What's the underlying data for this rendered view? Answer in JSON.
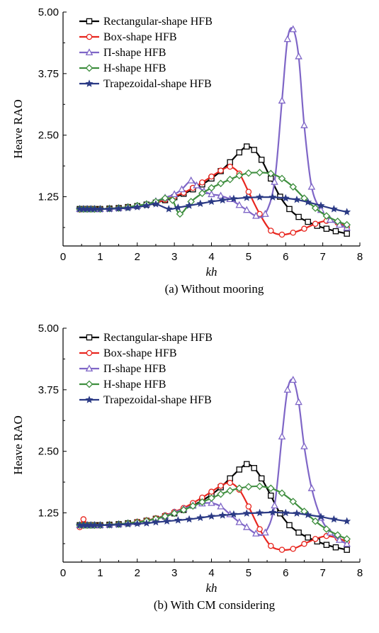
{
  "chart_data": [
    {
      "type": "line",
      "caption": "(a) Without mooring",
      "xlabel": "kh",
      "ylabel": "Heave RAO",
      "xlim": [
        0,
        8
      ],
      "ylim": [
        0.25,
        5.0
      ],
      "xticks": [
        "0",
        "1",
        "2",
        "3",
        "4",
        "5",
        "6",
        "7",
        "8"
      ],
      "yticks": [
        "1.25",
        "2.50",
        "3.75",
        "5.00"
      ],
      "legend_position": "top-left",
      "series": [
        {
          "name": "Rectangular-shape HFB",
          "color": "#000000",
          "marker": "square",
          "x": [
            0.45,
            0.55,
            0.65,
            0.75,
            0.85,
            1.0,
            1.25,
            1.5,
            1.75,
            2.0,
            2.25,
            2.5,
            2.75,
            3.0,
            3.25,
            3.5,
            3.75,
            4.0,
            4.25,
            4.5,
            4.75,
            4.95,
            5.15,
            5.35,
            5.6,
            5.85,
            6.1,
            6.35,
            6.6,
            6.85,
            7.1,
            7.35,
            7.65
          ],
          "y": [
            1.0,
            1.0,
            1.0,
            1.0,
            1.0,
            1.0,
            1.01,
            1.02,
            1.04,
            1.06,
            1.09,
            1.13,
            1.18,
            1.24,
            1.31,
            1.4,
            1.5,
            1.62,
            1.77,
            1.95,
            2.15,
            2.27,
            2.2,
            2.0,
            1.62,
            1.25,
            1.0,
            0.84,
            0.74,
            0.66,
            0.6,
            0.55,
            0.5
          ]
        },
        {
          "name": "Box-shape HFB",
          "color": "#e8261f",
          "marker": "circle",
          "x": [
            0.45,
            0.55,
            0.65,
            0.75,
            0.85,
            1.0,
            1.25,
            1.5,
            1.75,
            2.0,
            2.25,
            2.5,
            2.75,
            3.0,
            3.25,
            3.5,
            3.75,
            4.0,
            4.25,
            4.5,
            4.75,
            5.0,
            5.3,
            5.6,
            5.9,
            6.2,
            6.5,
            6.8,
            7.1,
            7.4,
            7.65
          ],
          "y": [
            0.99,
            1.0,
            1.0,
            1.0,
            1.0,
            1.0,
            1.01,
            1.02,
            1.04,
            1.06,
            1.09,
            1.13,
            1.19,
            1.26,
            1.33,
            1.43,
            1.54,
            1.66,
            1.78,
            1.86,
            1.72,
            1.35,
            0.9,
            0.56,
            0.48,
            0.52,
            0.6,
            0.7,
            0.76,
            0.72,
            0.63
          ]
        },
        {
          "name": "Π-shape HFB",
          "color": "#7f66c7",
          "marker": "triangle",
          "x": [
            0.45,
            0.55,
            0.65,
            0.75,
            0.85,
            1.0,
            1.25,
            1.5,
            1.75,
            2.0,
            2.25,
            2.5,
            2.75,
            3.0,
            3.2,
            3.45,
            3.6,
            3.8,
            4.0,
            4.25,
            4.5,
            4.75,
            4.95,
            5.2,
            5.45,
            5.7,
            5.9,
            6.05,
            6.2,
            6.35,
            6.5,
            6.7,
            6.95,
            7.2,
            7.45,
            7.65
          ],
          "y": [
            1.0,
            1.0,
            1.0,
            1.0,
            1.0,
            1.0,
            1.01,
            1.02,
            1.04,
            1.06,
            1.1,
            1.16,
            1.23,
            1.3,
            1.4,
            1.58,
            1.48,
            1.36,
            1.3,
            1.27,
            1.2,
            1.08,
            0.98,
            0.86,
            0.9,
            1.55,
            3.2,
            4.45,
            4.65,
            4.1,
            2.7,
            1.45,
            0.98,
            0.78,
            0.68,
            0.62
          ]
        },
        {
          "name": "H-shape HFB",
          "color": "#3e8e3e",
          "marker": "diamond",
          "x": [
            0.45,
            0.55,
            0.65,
            0.75,
            0.85,
            1.0,
            1.25,
            1.5,
            1.75,
            2.0,
            2.25,
            2.5,
            2.75,
            2.95,
            3.15,
            3.45,
            3.75,
            4.0,
            4.25,
            4.5,
            4.75,
            5.0,
            5.3,
            5.6,
            5.9,
            6.2,
            6.5,
            6.8,
            7.1,
            7.4,
            7.65
          ],
          "y": [
            1.0,
            1.0,
            1.0,
            1.0,
            1.0,
            1.0,
            1.01,
            1.02,
            1.04,
            1.07,
            1.1,
            1.15,
            1.22,
            1.18,
            0.9,
            1.15,
            1.32,
            1.43,
            1.52,
            1.6,
            1.68,
            1.73,
            1.74,
            1.72,
            1.62,
            1.45,
            1.22,
            1.02,
            0.86,
            0.75,
            0.68
          ]
        },
        {
          "name": "Trapezoidal-shape HFB",
          "color": "#2b3a85",
          "marker": "star",
          "x": [
            0.45,
            0.55,
            0.65,
            0.75,
            0.85,
            1.0,
            1.25,
            1.5,
            1.75,
            2.0,
            2.25,
            2.5,
            2.85,
            3.1,
            3.4,
            3.7,
            4.0,
            4.3,
            4.6,
            4.95,
            5.3,
            5.65,
            6.0,
            6.3,
            6.6,
            6.95,
            7.3,
            7.65
          ],
          "y": [
            1.0,
            1.0,
            1.0,
            1.0,
            1.0,
            1.0,
            1.0,
            1.01,
            1.02,
            1.04,
            1.07,
            1.1,
            1.0,
            1.03,
            1.07,
            1.11,
            1.15,
            1.18,
            1.21,
            1.23,
            1.24,
            1.24,
            1.22,
            1.19,
            1.14,
            1.07,
            1.0,
            0.94
          ]
        }
      ]
    },
    {
      "type": "line",
      "caption": "(b) With CM considering",
      "xlabel": "kh",
      "ylabel": "Heave RAO",
      "xlim": [
        0,
        8
      ],
      "ylim": [
        0.25,
        5.0
      ],
      "xticks": [
        "0",
        "1",
        "2",
        "3",
        "4",
        "5",
        "6",
        "7",
        "8"
      ],
      "yticks": [
        "1.25",
        "2.50",
        "3.75",
        "5.00"
      ],
      "legend_position": "top-left",
      "series": [
        {
          "name": "Rectangular-shape HFB",
          "color": "#000000",
          "marker": "square",
          "x": [
            0.45,
            0.55,
            0.65,
            0.75,
            0.85,
            1.0,
            1.25,
            1.5,
            1.75,
            2.0,
            2.25,
            2.5,
            2.75,
            3.0,
            3.25,
            3.5,
            3.75,
            4.0,
            4.25,
            4.5,
            4.75,
            4.95,
            5.15,
            5.35,
            5.6,
            5.85,
            6.1,
            6.35,
            6.6,
            6.85,
            7.1,
            7.35,
            7.65
          ],
          "y": [
            1.0,
            1.0,
            1.0,
            1.0,
            1.0,
            1.0,
            1.01,
            1.02,
            1.04,
            1.06,
            1.09,
            1.13,
            1.18,
            1.24,
            1.31,
            1.4,
            1.5,
            1.62,
            1.77,
            1.95,
            2.13,
            2.24,
            2.16,
            1.95,
            1.6,
            1.24,
            1.0,
            0.85,
            0.75,
            0.67,
            0.6,
            0.55,
            0.5
          ]
        },
        {
          "name": "Box-shape HFB",
          "color": "#e8261f",
          "marker": "circle",
          "x": [
            0.45,
            0.55,
            0.65,
            0.75,
            0.85,
            1.0,
            1.25,
            1.5,
            1.75,
            2.0,
            2.25,
            2.5,
            2.75,
            3.0,
            3.25,
            3.5,
            3.75,
            4.0,
            4.25,
            4.5,
            4.75,
            5.0,
            5.3,
            5.6,
            5.9,
            6.2,
            6.5,
            6.8,
            7.1,
            7.4,
            7.65
          ],
          "y": [
            0.96,
            1.12,
            1.0,
            1.0,
            1.0,
            1.0,
            1.01,
            1.02,
            1.04,
            1.07,
            1.1,
            1.14,
            1.2,
            1.27,
            1.35,
            1.45,
            1.56,
            1.68,
            1.8,
            1.86,
            1.72,
            1.38,
            0.92,
            0.58,
            0.5,
            0.52,
            0.62,
            0.72,
            0.78,
            0.74,
            0.66
          ]
        },
        {
          "name": "Π-shape HFB",
          "color": "#7f66c7",
          "marker": "triangle",
          "x": [
            0.45,
            0.55,
            0.65,
            0.75,
            0.85,
            1.0,
            1.25,
            1.5,
            1.75,
            2.0,
            2.25,
            2.5,
            2.75,
            3.0,
            3.25,
            3.5,
            3.75,
            4.0,
            4.25,
            4.5,
            4.75,
            4.95,
            5.2,
            5.45,
            5.7,
            5.9,
            6.05,
            6.2,
            6.35,
            6.5,
            6.7,
            6.95,
            7.2,
            7.45,
            7.65
          ],
          "y": [
            1.0,
            1.0,
            1.0,
            1.0,
            1.0,
            1.0,
            1.01,
            1.02,
            1.04,
            1.06,
            1.09,
            1.13,
            1.19,
            1.26,
            1.33,
            1.4,
            1.44,
            1.45,
            1.38,
            1.22,
            1.06,
            0.96,
            0.83,
            0.85,
            1.4,
            2.8,
            3.75,
            3.95,
            3.5,
            2.6,
            1.75,
            1.15,
            0.85,
            0.7,
            0.62
          ]
        },
        {
          "name": "H-shape HFB",
          "color": "#3e8e3e",
          "marker": "diamond",
          "x": [
            0.45,
            0.55,
            0.65,
            0.75,
            0.85,
            1.0,
            1.25,
            1.5,
            1.75,
            2.0,
            2.25,
            2.5,
            2.75,
            3.0,
            3.25,
            3.5,
            3.75,
            4.0,
            4.25,
            4.5,
            4.75,
            5.0,
            5.3,
            5.6,
            5.9,
            6.2,
            6.5,
            6.8,
            7.1,
            7.4,
            7.65
          ],
          "y": [
            1.0,
            1.0,
            1.0,
            1.0,
            1.0,
            1.0,
            1.01,
            1.02,
            1.04,
            1.06,
            1.09,
            1.13,
            1.18,
            1.24,
            1.31,
            1.39,
            1.47,
            1.55,
            1.63,
            1.7,
            1.75,
            1.78,
            1.79,
            1.75,
            1.65,
            1.48,
            1.28,
            1.08,
            0.92,
            0.8,
            0.72
          ]
        },
        {
          "name": "Trapezoidal-shape HFB",
          "color": "#2b3a85",
          "marker": "star",
          "x": [
            0.45,
            0.55,
            0.65,
            0.75,
            0.85,
            1.0,
            1.25,
            1.5,
            1.75,
            2.0,
            2.25,
            2.5,
            2.8,
            3.1,
            3.4,
            3.7,
            4.0,
            4.3,
            4.6,
            4.95,
            5.3,
            5.65,
            6.0,
            6.3,
            6.6,
            6.95,
            7.3,
            7.65
          ],
          "y": [
            1.0,
            1.0,
            1.0,
            1.0,
            1.0,
            1.0,
            1.0,
            1.01,
            1.02,
            1.03,
            1.04,
            1.06,
            1.08,
            1.1,
            1.12,
            1.15,
            1.18,
            1.2,
            1.22,
            1.24,
            1.25,
            1.26,
            1.25,
            1.24,
            1.21,
            1.17,
            1.12,
            1.08
          ]
        }
      ]
    }
  ]
}
